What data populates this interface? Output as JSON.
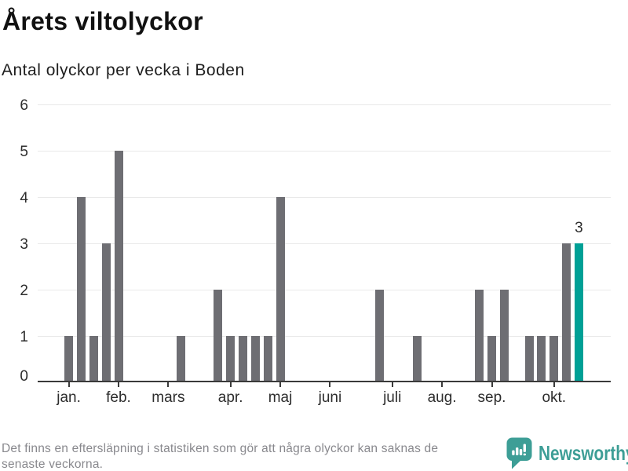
{
  "header": {
    "title": "Årets viltolyckor",
    "subtitle": "Antal olyckor per vecka i Boden"
  },
  "chart_data": {
    "type": "bar",
    "title": "Årets viltolyckor",
    "subtitle": "Antal olyckor per vecka i Boden",
    "x_unit": "vecka (week number)",
    "first_week": 1,
    "weeks_shown": 42,
    "values": [
      1,
      4,
      1,
      3,
      5,
      0,
      0,
      0,
      0,
      1,
      0,
      0,
      2,
      1,
      1,
      1,
      1,
      4,
      0,
      0,
      0,
      0,
      0,
      0,
      0,
      2,
      0,
      0,
      1,
      0,
      0,
      0,
      0,
      2,
      1,
      2,
      0,
      1,
      1,
      1,
      3,
      3
    ],
    "highlight": {
      "week": 42,
      "value": 3,
      "label": "3"
    },
    "ylim": [
      0,
      6
    ],
    "yticks": [
      0,
      1,
      2,
      3,
      4,
      5,
      6
    ],
    "grid": "horizontal",
    "legend": "none",
    "month_ticks": [
      {
        "label": "jan.",
        "week": 1
      },
      {
        "label": "feb.",
        "week": 5
      },
      {
        "label": "mars",
        "week": 9
      },
      {
        "label": "apr.",
        "week": 14
      },
      {
        "label": "maj",
        "week": 18
      },
      {
        "label": "juni",
        "week": 22
      },
      {
        "label": "juli",
        "week": 27
      },
      {
        "label": "aug.",
        "week": 31
      },
      {
        "label": "sep.",
        "week": 35
      },
      {
        "label": "okt.",
        "week": 40
      }
    ],
    "colors": {
      "bar": "#6e6e73",
      "highlight": "#00a096",
      "grid": "#e9e9e9",
      "axis": "#3a3a3a",
      "axis_text": "#2d2d2d"
    }
  },
  "footer": {
    "note_line1": "Det finns en eftersläpning i statistiken som gör att några olyckor kan saknas de",
    "note_line2": "senaste veckorna.",
    "brand": {
      "name": "Newsworthy",
      "color": "#3d9e96",
      "icon": "newsworthy-speech-bubble-barchart-icon"
    }
  }
}
